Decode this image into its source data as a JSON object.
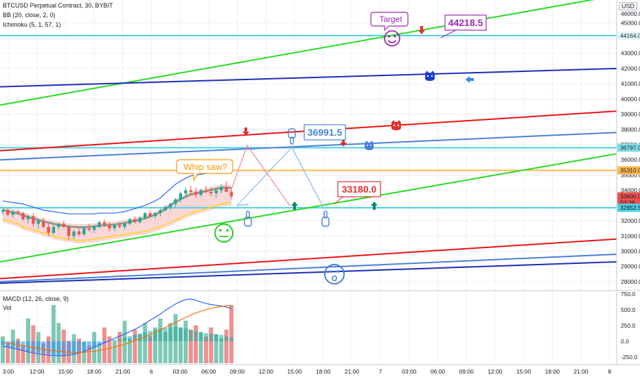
{
  "header": {
    "symbol_line": "BTCUSD Perpetual Contract, 30, BYBIT",
    "bb_line": "BB (20, close, 2, 0)",
    "ichimoku_line": "Ichimoku (5, 1, 57, 1)",
    "currency": "USD",
    "macd_line": "MACD (12, 26, close, 9)",
    "vol_line": "Vol"
  },
  "annotations": {
    "target": "Target",
    "target_price": "44218.5",
    "whipsaw": "Whip saw?",
    "mid_price": "36991.5",
    "low_price": "33180.0"
  },
  "price_axis": {
    "ticks": [
      "45000.0",
      "43000.0",
      "42000.0",
      "41000.0",
      "40000.0",
      "39000.0",
      "38000.0",
      "37000.0",
      "36000.0",
      "35000.0",
      "34000.0",
      "33000.0",
      "32000.0",
      "31000.0",
      "30000.0",
      "29000.0",
      "28000.0"
    ],
    "top_label": "46000.0",
    "badges": [
      {
        "text": "44164.0",
        "color": "#e0f7fa"
      },
      {
        "text": "36797.0",
        "color": "#80deea"
      },
      {
        "text": "35310.0",
        "color": "#ffb74d"
      },
      {
        "text": "33600.0",
        "color": "#ef5350"
      },
      {
        "text": "03:26",
        "color": "#ef5350"
      },
      {
        "text": "32852.5",
        "color": "#4dd0e1"
      }
    ]
  },
  "macd_axis": {
    "ticks": [
      "750.0",
      "500.0",
      "250.0",
      "0.0",
      "-250.0"
    ]
  },
  "time_axis": [
    "3:00",
    "12:00",
    "15:00",
    "18:00",
    "21:00",
    "6",
    "03:00",
    "06:00",
    "09:00",
    "12:00",
    "15:00",
    "18:00",
    "21:00",
    "7",
    "03:00",
    "06:00",
    "09:00",
    "12:00",
    "15:00",
    "18:00",
    "21:00",
    "8"
  ],
  "chart_data": [
    {
      "type": "candlestick",
      "title": "BTCUSD Perpetual Contract, 30, BYBIT",
      "ylim": [
        27500,
        46500
      ],
      "candles_ohlc": [
        [
          32600,
          32900,
          32400,
          32700
        ],
        [
          32700,
          32800,
          32300,
          32400
        ],
        [
          32400,
          32700,
          32200,
          32600
        ],
        [
          32600,
          32750,
          32450,
          32500
        ],
        [
          32500,
          32600,
          32000,
          32100
        ],
        [
          32100,
          32400,
          31800,
          32300
        ],
        [
          32300,
          32500,
          31600,
          31800
        ],
        [
          31800,
          32100,
          31500,
          32000
        ],
        [
          32000,
          32200,
          31500,
          31600
        ],
        [
          31600,
          31800,
          31000,
          31200
        ],
        [
          31200,
          31700,
          31100,
          31600
        ],
        [
          31600,
          31900,
          31400,
          31800
        ],
        [
          31800,
          32000,
          31500,
          31600
        ],
        [
          31600,
          31700,
          30700,
          31000
        ],
        [
          31000,
          31400,
          30800,
          31300
        ],
        [
          31300,
          31500,
          31000,
          31100
        ],
        [
          31100,
          31600,
          31000,
          31500
        ],
        [
          31500,
          31800,
          31300,
          31400
        ],
        [
          31400,
          31700,
          31200,
          31600
        ],
        [
          31600,
          32000,
          31500,
          31900
        ],
        [
          31900,
          32100,
          31600,
          31700
        ],
        [
          31700,
          31900,
          31300,
          31500
        ],
        [
          31500,
          31800,
          31300,
          31700
        ],
        [
          31700,
          31900,
          31500,
          31600
        ],
        [
          31600,
          31900,
          31400,
          31800
        ],
        [
          31800,
          32200,
          31700,
          32100
        ],
        [
          32100,
          32300,
          31800,
          31900
        ],
        [
          31900,
          32300,
          31800,
          32200
        ],
        [
          32200,
          32600,
          32100,
          32500
        ],
        [
          32500,
          32700,
          32200,
          32300
        ],
        [
          32300,
          32600,
          32100,
          32500
        ],
        [
          32500,
          32800,
          32300,
          32700
        ],
        [
          32700,
          33000,
          32600,
          32900
        ],
        [
          32900,
          33200,
          32700,
          33100
        ],
        [
          33100,
          33500,
          32900,
          33400
        ],
        [
          33400,
          33900,
          33200,
          33800
        ],
        [
          33800,
          34200,
          33600,
          34000
        ],
        [
          34000,
          34300,
          33700,
          33900
        ],
        [
          33900,
          34200,
          33500,
          33700
        ],
        [
          33700,
          34100,
          33600,
          34000
        ],
        [
          34000,
          34300,
          33800,
          33900
        ],
        [
          33900,
          34200,
          33600,
          33800
        ],
        [
          33800,
          34100,
          33500,
          34000
        ],
        [
          34000,
          34400,
          33800,
          34200
        ],
        [
          34200,
          34600,
          34000,
          33900
        ],
        [
          33900,
          34200,
          33400,
          33600
        ]
      ],
      "bollinger_upper_approx": [
        33300,
        33250,
        33200,
        33150,
        33100,
        33000,
        32900,
        32800,
        32700,
        32650,
        32600,
        32550,
        32500,
        32450,
        32450,
        32450,
        32450,
        32450,
        32450,
        32500,
        32500,
        32500,
        32500,
        32550,
        32600,
        32700,
        32800,
        32900,
        33000,
        33150,
        33300,
        33500,
        33800,
        34100,
        34400,
        34600,
        34800,
        34950,
        35000,
        35050,
        35100,
        35150,
        35200,
        35250,
        35200,
        35100
      ],
      "bollinger_lower_approx": [
        32100,
        32000,
        31900,
        31800,
        31600,
        31500,
        31400,
        31300,
        31200,
        31100,
        31000,
        30900,
        30850,
        30800,
        30750,
        30700,
        30700,
        30750,
        30800,
        30850,
        30900,
        30950,
        31000,
        31050,
        31100,
        31150,
        31200,
        31250,
        31300,
        31400,
        31500,
        31600,
        31750,
        31900,
        32050,
        32200,
        32350,
        32500,
        32600,
        32700,
        32800,
        32900,
        33000,
        33100,
        33150,
        33200
      ],
      "trendlines": [
        {
          "name": "green-upper",
          "color": "#22dd22",
          "from": [
            0,
            39600
          ],
          "to": [
            1,
            46800
          ]
        },
        {
          "name": "navy-upper",
          "color": "#1a2db4",
          "from": [
            0,
            40800
          ],
          "to": [
            1,
            42000
          ]
        },
        {
          "name": "red-upper",
          "color": "#ee1111",
          "from": [
            0,
            36600
          ],
          "to": [
            1,
            39200
          ]
        },
        {
          "name": "blue-upper",
          "color": "#4a7fd8",
          "from": [
            0,
            36000
          ],
          "to": [
            1,
            37800
          ]
        },
        {
          "name": "green-lower",
          "color": "#22dd22",
          "from": [
            0,
            29300
          ],
          "to": [
            1,
            36400
          ]
        },
        {
          "name": "red-lower",
          "color": "#ee1111",
          "from": [
            0,
            28200
          ],
          "to": [
            1,
            30800
          ]
        },
        {
          "name": "blue-lower",
          "color": "#4a7fd8",
          "from": [
            0,
            28000
          ],
          "to": [
            1,
            29800
          ]
        },
        {
          "name": "navy-lower",
          "color": "#1a2db4",
          "from": [
            0,
            27900
          ],
          "to": [
            1,
            29300
          ]
        }
      ],
      "horizontal_levels": [
        {
          "value": 44164.0,
          "color": "#4dd0e1"
        },
        {
          "value": 36797.0,
          "color": "#4dd0e1"
        },
        {
          "value": 35310.0,
          "color": "#ffb74d"
        },
        {
          "value": 32852.5,
          "color": "#4dd0e1"
        }
      ]
    },
    {
      "type": "bar",
      "title": "MACD (12, 26, close, 9)",
      "ylim": [
        -350,
        780
      ],
      "histogram": [
        -60,
        -80,
        -100,
        -120,
        -140,
        -160,
        -170,
        -180,
        -190,
        -200,
        -210,
        -215,
        -220,
        -210,
        -200,
        -180,
        -150,
        -120,
        -90,
        -60,
        -30,
        0,
        20,
        40,
        60,
        80,
        100,
        120,
        140,
        160,
        180,
        200,
        210,
        220,
        230,
        220,
        200,
        180,
        160,
        140,
        130,
        120,
        110,
        100,
        80,
        60
      ],
      "macd_line_approx": [
        -80,
        -90,
        -110,
        -130,
        -150,
        -170,
        -185,
        -200,
        -210,
        -220,
        -225,
        -230,
        -228,
        -220,
        -205,
        -185,
        -160,
        -130,
        -95,
        -60,
        -25,
        10,
        45,
        80,
        115,
        150,
        190,
        230,
        280,
        330,
        380,
        430,
        490,
        540,
        590,
        630,
        660,
        670,
        650,
        620,
        600,
        580,
        570,
        560,
        540,
        520
      ],
      "signal_line_approx": [
        -20,
        -30,
        -40,
        -55,
        -70,
        -85,
        -100,
        -115,
        -130,
        -140,
        -150,
        -160,
        -168,
        -175,
        -178,
        -178,
        -175,
        -168,
        -158,
        -145,
        -130,
        -112,
        -92,
        -70,
        -46,
        -20,
        8,
        38,
        70,
        104,
        140,
        178,
        218,
        258,
        298,
        338,
        378,
        415,
        448,
        476,
        500,
        520,
        538,
        552,
        560,
        565
      ],
      "volume": [
        120,
        90,
        150,
        110,
        80,
        200,
        170,
        140,
        90,
        120,
        260,
        180,
        150,
        100,
        130,
        110,
        95,
        80,
        140,
        90,
        160,
        120,
        100,
        140,
        190,
        110,
        150,
        130,
        180,
        120,
        160,
        200,
        140,
        180,
        220,
        160,
        190,
        150,
        170,
        140,
        120,
        160,
        130,
        110,
        150,
        260
      ]
    }
  ]
}
